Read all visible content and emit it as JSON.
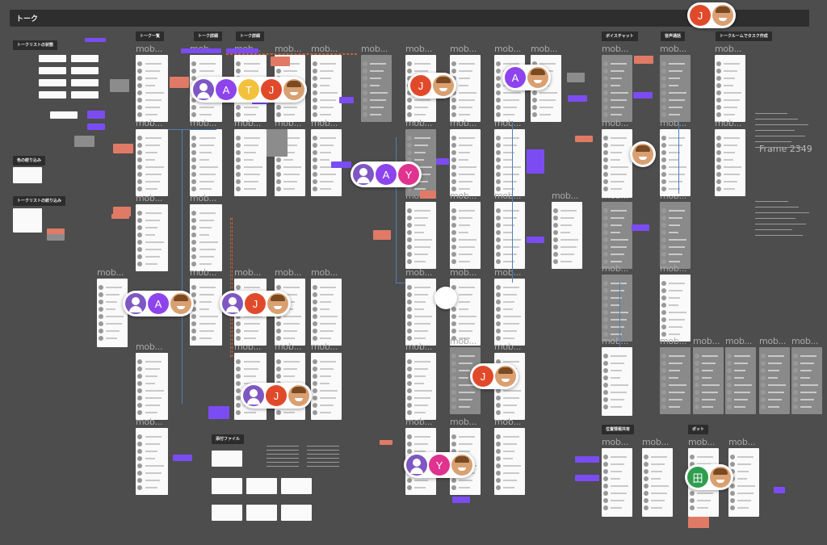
{
  "canvas": {
    "title": "トーク",
    "frame_label": "mob...",
    "frame_title": "Frame 2349",
    "sections": [
      "トークリストの状態",
      "トーク一覧",
      "トーク詳細",
      "トーク詳細",
      "ボイスチャット",
      "音声通話",
      "トークルームでタスク作成",
      "色の絞り込み",
      "トークリストの絞り込み",
      "添付ファイル",
      "位置情報共有",
      "ボット"
    ]
  },
  "collaborators": [
    {
      "avatars": [
        "person",
        "A",
        "T",
        "J",
        "face"
      ]
    },
    {
      "avatars": [
        "person",
        "J",
        "face"
      ]
    },
    {
      "avatars": [
        "A",
        "face"
      ]
    },
    {
      "avatars": [
        "J",
        "face"
      ]
    },
    {
      "avatars": [
        "person",
        "A",
        "Y"
      ]
    },
    {
      "avatars": [
        "person",
        "A",
        "face"
      ]
    },
    {
      "avatars": [
        "J",
        "face"
      ]
    },
    {
      "avatars": [
        "face"
      ]
    },
    {
      "avatars": [
        "J",
        "face"
      ]
    },
    {
      "avatars": [
        "person",
        "J",
        "face"
      ]
    },
    {
      "avatars": [
        "person",
        "Y",
        "face"
      ]
    },
    {
      "avatars": [
        "田",
        "face"
      ]
    },
    {
      "avatars": []
    }
  ],
  "colors": {
    "canvas_bg": "#4d4d4d",
    "header_bg": "#2e2e2e",
    "note_purple": "#7b4cf2",
    "note_salmon": "#e07a66",
    "note_gray": "#8c8c8c",
    "avatar_A": "#8e44ec",
    "avatar_J": "#e04a2a",
    "avatar_T": "#f2c23c",
    "avatar_Y": "#e0328f",
    "avatar_grid": "#2e9e4e"
  }
}
